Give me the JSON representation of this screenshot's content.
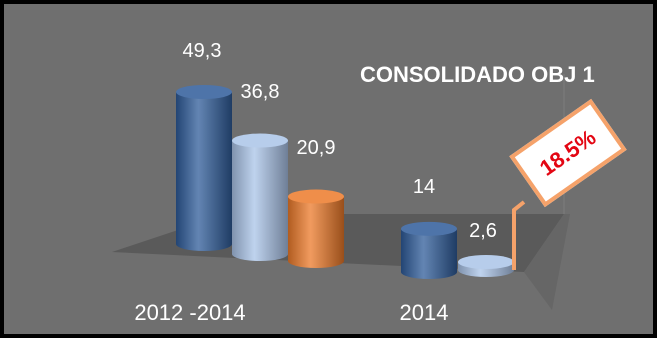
{
  "chart_data": {
    "type": "bar",
    "title": "CONSOLIDADO OBJ 1",
    "categories": [
      "2012 -2014",
      "2014"
    ],
    "series": [
      {
        "values": [
          49.3,
          14
        ],
        "labels": [
          "49,3",
          "14"
        ],
        "color": "#2f5c9a"
      },
      {
        "values": [
          36.8,
          2.6
        ],
        "labels": [
          "36,8",
          "2,6"
        ],
        "color": "#aac4e8"
      },
      {
        "values": [
          20.9,
          null
        ],
        "labels": [
          "20,9",
          ""
        ],
        "color": "#ec7a2a"
      }
    ],
    "annotation": "18.5%",
    "ylim": [
      0,
      60
    ],
    "grid": false
  },
  "colors": {
    "background": "#6f6f6f",
    "floor": "#5a5a5a",
    "callout_border": "#f5a26a",
    "callout_text": "#e30613"
  }
}
